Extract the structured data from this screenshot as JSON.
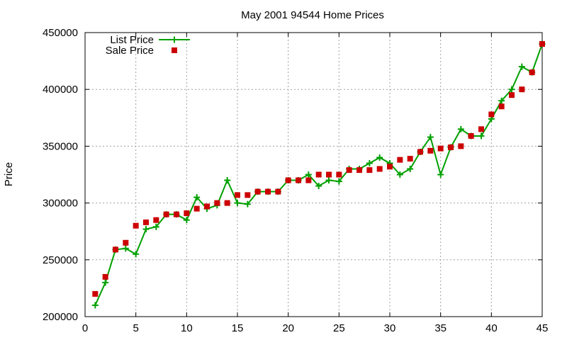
{
  "chart_data": {
    "type": "line",
    "title": "May 2001 94544 Home Prices",
    "xlabel": "",
    "ylabel": "Price",
    "xlim": [
      0,
      45
    ],
    "ylim": [
      200000,
      450000
    ],
    "xticks": [
      0,
      5,
      10,
      15,
      20,
      25,
      30,
      35,
      40,
      45
    ],
    "yticks": [
      200000,
      250000,
      300000,
      350000,
      400000,
      450000
    ],
    "grid": true,
    "legend_position": "top-left",
    "series": [
      {
        "name": "List Price",
        "style": "line-with-plus-markers",
        "color": "#00a000",
        "x": [
          1,
          2,
          3,
          4,
          5,
          6,
          7,
          8,
          9,
          10,
          11,
          12,
          13,
          14,
          15,
          16,
          17,
          18,
          19,
          20,
          21,
          22,
          23,
          24,
          25,
          26,
          27,
          28,
          29,
          30,
          31,
          32,
          33,
          34,
          35,
          36,
          37,
          38,
          39,
          40,
          41,
          42,
          43,
          44,
          45
        ],
        "y": [
          210000,
          230000,
          259000,
          260000,
          255000,
          277000,
          279000,
          290000,
          290000,
          285000,
          305000,
          295000,
          298000,
          320000,
          300000,
          299000,
          310000,
          310000,
          310000,
          320000,
          320000,
          325000,
          315000,
          320000,
          319000,
          330000,
          330000,
          335000,
          340000,
          335000,
          325000,
          330000,
          345000,
          358000,
          325000,
          349000,
          365000,
          359000,
          359000,
          374000,
          390000,
          400000,
          420000,
          415000,
          440000
        ]
      },
      {
        "name": "Sale Price",
        "style": "square-markers",
        "color": "#cc0000",
        "x": [
          1,
          2,
          3,
          4,
          5,
          6,
          7,
          8,
          9,
          10,
          11,
          12,
          13,
          14,
          15,
          16,
          17,
          18,
          19,
          20,
          21,
          22,
          23,
          24,
          25,
          26,
          27,
          28,
          29,
          30,
          31,
          32,
          33,
          34,
          35,
          36,
          37,
          38,
          39,
          40,
          41,
          42,
          43,
          44,
          45
        ],
        "y": [
          220000,
          235000,
          259000,
          265000,
          280000,
          283000,
          285000,
          290000,
          290000,
          291000,
          295000,
          297000,
          300000,
          300000,
          307000,
          307000,
          310000,
          310000,
          310000,
          320000,
          320000,
          320000,
          325000,
          325000,
          325000,
          329000,
          329000,
          329000,
          330000,
          332000,
          338000,
          339000,
          345000,
          346000,
          348000,
          349000,
          350000,
          359000,
          365000,
          378000,
          385000,
          395000,
          400000,
          415000,
          440000
        ]
      }
    ]
  }
}
